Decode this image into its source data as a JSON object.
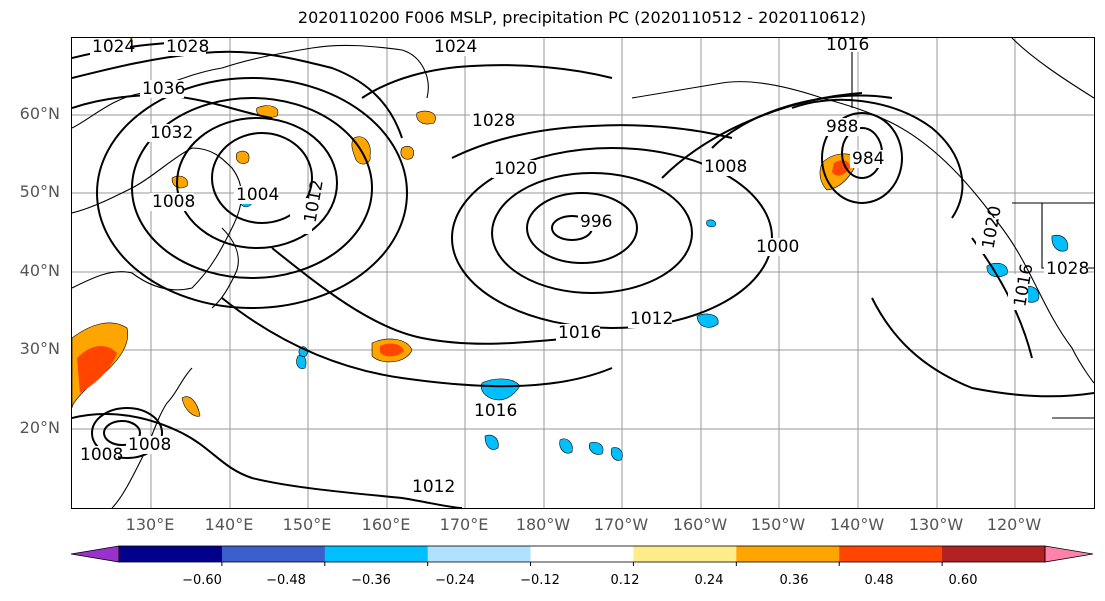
{
  "title": "2020110200 F006 MSLP, precipitation PC (2020110512 - 2020110612)",
  "latitude_labels": [
    "60°N",
    "50°N",
    "40°N",
    "30°N",
    "20°N"
  ],
  "longitude_labels": [
    "130°E",
    "140°E",
    "150°E",
    "160°E",
    "170°E",
    "180°W",
    "170°W",
    "160°W",
    "150°W",
    "140°W",
    "130°W",
    "120°W"
  ],
  "isobar_labels": [
    "1024",
    "1028",
    "1024",
    "1016",
    "1036",
    "1032",
    "1004",
    "1008",
    "1012",
    "1028",
    "1020",
    "996",
    "1008",
    "988",
    "984",
    "1000",
    "1012",
    "1016",
    "1016",
    "1008",
    "1008",
    "1012",
    "1020",
    "1028",
    "1016"
  ],
  "colorbar": {
    "ticks": [
      "−0.60",
      "−0.48",
      "−0.36",
      "−0.24",
      "−0.12",
      "0.12",
      "0.24",
      "0.36",
      "0.48",
      "0.60"
    ],
    "colors": [
      "#9932CC",
      "#00008B",
      "#3A5FCD",
      "#00BFFF",
      "#B0E2FF",
      "#FFFFFF",
      "#FFEC8B",
      "#FFA500",
      "#FF4500",
      "#B22222",
      "#FF82AB"
    ]
  }
}
